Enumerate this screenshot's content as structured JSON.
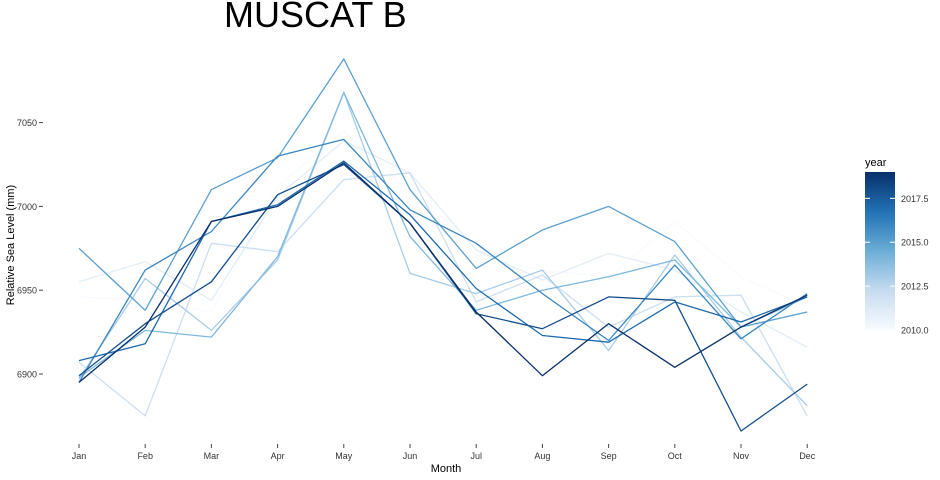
{
  "chart_data": {
    "type": "line",
    "title": "MUSCAT B",
    "xlabel": "Month",
    "ylabel": "Relative Sea Level (mm)",
    "categories": [
      "Jan",
      "Feb",
      "Mar",
      "Apr",
      "May",
      "Jun",
      "Jul",
      "Aug",
      "Sep",
      "Oct",
      "Nov",
      "Dec"
    ],
    "yticks": [
      6900,
      6950,
      7000,
      7050
    ],
    "ylim": [
      6866,
      7088
    ],
    "grid": false,
    "legend": {
      "title": "year",
      "type": "colorbar",
      "position": "right",
      "range": [
        2010,
        2019
      ],
      "ticks": [
        "2010.0",
        "2012.5",
        "2015.0",
        "2017.5"
      ],
      "low_color": "#f7fbff",
      "high_color": "#08306b"
    },
    "series": [
      {
        "year": 2010,
        "values": [
          6946,
          6944,
          6937,
          7012,
          7045,
          7008,
          6971,
          6962,
          6958,
          6991,
          6958,
          6940
        ]
      },
      {
        "year": 2011,
        "values": [
          6955,
          6967,
          6944,
          7006,
          7039,
          7020,
          6974,
          6956,
          6972,
          6962,
          6937,
          6916
        ]
      },
      {
        "year": 2012,
        "values": [
          6907,
          6875,
          6978,
          6973,
          7016,
          7020,
          6943,
          6959,
          6928,
          6946,
          6947,
          6875
        ]
      },
      {
        "year": 2013,
        "values": [
          6897,
          6957,
          6926,
          6968,
          7068,
          6960,
          6948,
          6962,
          6914,
          6971,
          6922,
          6881
        ]
      },
      {
        "year": 2014,
        "values": [
          6898,
          6926,
          6922,
          6970,
          7068,
          6982,
          6938,
          6950,
          6958,
          6968,
          6928,
          6946
        ]
      },
      {
        "year": 2015,
        "values": [
          6975,
          6938,
          7010,
          7029,
          7088,
          7010,
          6963,
          6986,
          7000,
          6979,
          6928,
          6937
        ]
      },
      {
        "year": 2016,
        "values": [
          6895,
          6962,
          6985,
          7030,
          7040,
          6998,
          6978,
          6948,
          6920,
          6965,
          6921,
          6948
        ]
      },
      {
        "year": 2017,
        "values": [
          6908,
          6918,
          6991,
          7001,
          7027,
          6995,
          6951,
          6923,
          6919,
          6943,
          6931,
          6946
        ]
      },
      {
        "year": 2018,
        "values": [
          6899,
          6930,
          6955,
          7007,
          7025,
          6990,
          6936,
          6927,
          6946,
          6944,
          6866,
          6894
        ]
      },
      {
        "year": 2019,
        "values": [
          6895,
          6928,
          6991,
          7000,
          7026,
          6990,
          6937,
          6899,
          6930,
          6904,
          6928,
          6947
        ]
      }
    ]
  }
}
